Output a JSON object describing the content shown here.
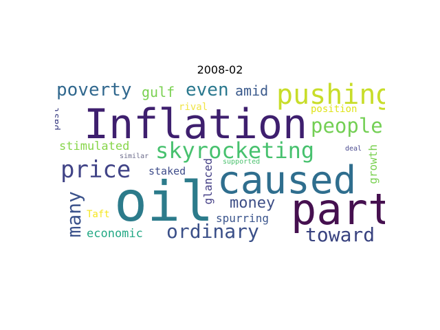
{
  "title": "2008-02",
  "words": [
    {
      "text": "Inflation",
      "color": "#3e1f6e",
      "vertical": false
    },
    {
      "text": "oil",
      "color": "#2c7b8b",
      "vertical": false
    },
    {
      "text": "caused",
      "color": "#2f6e8e",
      "vertical": false
    },
    {
      "text": "part",
      "color": "#45104f",
      "vertical": false
    },
    {
      "text": "pushing",
      "color": "#c8dd2a",
      "vertical": false
    },
    {
      "text": "skyrocketing",
      "color": "#47c16e",
      "vertical": false
    },
    {
      "text": "people",
      "color": "#73cf54",
      "vertical": false
    },
    {
      "text": "price",
      "color": "#414487",
      "vertical": false
    },
    {
      "text": "many",
      "color": "#3b528b",
      "vertical": true
    },
    {
      "text": "poverty",
      "color": "#31688e",
      "vertical": false
    },
    {
      "text": "ordinary",
      "color": "#3a4f88",
      "vertical": false
    },
    {
      "text": "toward",
      "color": "#38427f",
      "vertical": false
    },
    {
      "text": "money",
      "color": "#3d4e86",
      "vertical": false
    },
    {
      "text": "even",
      "color": "#2a788e",
      "vertical": false
    },
    {
      "text": "gulf",
      "color": "#7ad151",
      "vertical": false
    },
    {
      "text": "amid",
      "color": "#3b5a8c",
      "vertical": false
    },
    {
      "text": "stimulated",
      "color": "#86d549",
      "vertical": false
    },
    {
      "text": "economic",
      "color": "#22a884",
      "vertical": false
    },
    {
      "text": "spurring",
      "color": "#3a548c",
      "vertical": false
    },
    {
      "text": "growth",
      "color": "#7ad151",
      "vertical": true
    },
    {
      "text": "glanced",
      "color": "#433e85",
      "vertical": true
    },
    {
      "text": "staked",
      "color": "#3e4c8a",
      "vertical": false
    },
    {
      "text": "rival",
      "color": "#f0e442",
      "vertical": false
    },
    {
      "text": "position",
      "color": "#dfe318",
      "vertical": false
    },
    {
      "text": "past",
      "color": "#414487",
      "vertical": true
    },
    {
      "text": "Taft",
      "color": "#f5e61f",
      "vertical": false
    },
    {
      "text": "similar",
      "color": "#6b6b8b",
      "vertical": false
    },
    {
      "text": "supported",
      "color": "#4ac16d",
      "vertical": false
    },
    {
      "text": "deal",
      "color": "#4b4b8f",
      "vertical": false
    }
  ]
}
